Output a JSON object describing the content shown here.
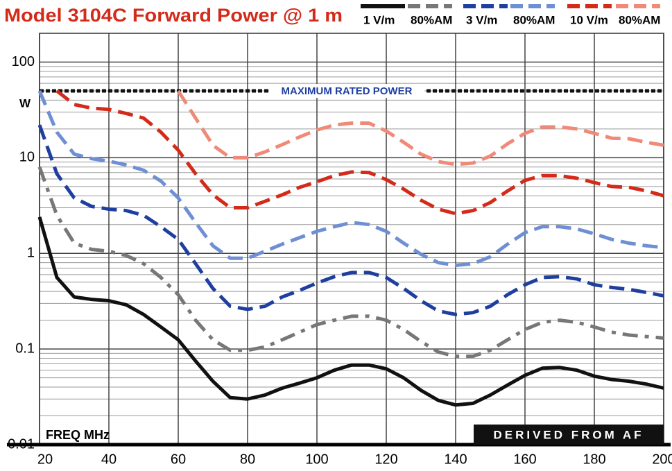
{
  "chart_data": {
    "type": "line",
    "title": "Model 3104C Forward Power @ 1 m",
    "ylabel": "W",
    "xlabel": "FREQ MHz",
    "annotation": "DERIVED FROM AF",
    "reference_line": {
      "value": 50,
      "label": "MAXIMUM RATED POWER",
      "color": "#111111"
    },
    "x": [
      20,
      25,
      30,
      35,
      40,
      45,
      50,
      55,
      60,
      65,
      70,
      75,
      80,
      85,
      90,
      95,
      100,
      105,
      110,
      115,
      120,
      125,
      130,
      135,
      140,
      145,
      150,
      155,
      160,
      165,
      170,
      175,
      180,
      185,
      190,
      195,
      200
    ],
    "xlim": [
      20,
      200
    ],
    "xticks": [
      20,
      40,
      60,
      80,
      100,
      120,
      140,
      160,
      180,
      200
    ],
    "ylim": [
      0.01,
      200
    ],
    "yticks": [
      0.01,
      0.1,
      1,
      10,
      100
    ],
    "log_y": true,
    "grid": true,
    "minor_grid": true,
    "legend": "top-right",
    "series": [
      {
        "name": "1 V/m",
        "color": "#111111",
        "style": "solid",
        "values": [
          2.4,
          0.56,
          0.35,
          0.33,
          0.32,
          0.29,
          0.23,
          0.17,
          0.125,
          0.075,
          0.046,
          0.031,
          0.03,
          0.033,
          0.039,
          0.044,
          0.05,
          0.06,
          0.068,
          0.068,
          0.062,
          0.05,
          0.037,
          0.029,
          0.026,
          0.027,
          0.033,
          0.042,
          0.053,
          0.063,
          0.064,
          0.06,
          0.052,
          0.048,
          0.046,
          0.043,
          0.039
        ]
      },
      {
        "name": "80%AM",
        "color": "#777777",
        "style": "dashdot",
        "values": [
          8,
          2.5,
          1.28,
          1.1,
          1.05,
          0.95,
          0.78,
          0.56,
          0.37,
          0.2,
          0.125,
          0.097,
          0.097,
          0.105,
          0.125,
          0.15,
          0.18,
          0.2,
          0.22,
          0.22,
          0.2,
          0.16,
          0.12,
          0.093,
          0.084,
          0.084,
          0.097,
          0.125,
          0.16,
          0.19,
          0.2,
          0.19,
          0.17,
          0.15,
          0.14,
          0.135,
          0.13
        ]
      },
      {
        "name": "3 V/m",
        "color": "#1f3fa0",
        "style": "dashed",
        "values": [
          22,
          6.8,
          3.8,
          3.1,
          2.9,
          2.8,
          2.5,
          1.9,
          1.4,
          0.78,
          0.43,
          0.28,
          0.26,
          0.28,
          0.35,
          0.41,
          0.49,
          0.57,
          0.63,
          0.63,
          0.56,
          0.43,
          0.32,
          0.25,
          0.23,
          0.24,
          0.28,
          0.37,
          0.47,
          0.56,
          0.57,
          0.54,
          0.47,
          0.44,
          0.42,
          0.39,
          0.36
        ]
      },
      {
        "name": "80%AM",
        "color": "#6f8fd4",
        "style": "dashed",
        "values": [
          50,
          18.5,
          10.9,
          9.8,
          9.2,
          8.4,
          7.4,
          5.7,
          3.8,
          2.1,
          1.2,
          0.89,
          0.89,
          1.05,
          1.25,
          1.46,
          1.7,
          1.9,
          2.1,
          2.0,
          1.7,
          1.28,
          0.98,
          0.8,
          0.75,
          0.78,
          0.92,
          1.25,
          1.65,
          1.9,
          1.9,
          1.8,
          1.6,
          1.4,
          1.28,
          1.2,
          1.15
        ]
      },
      {
        "name": "10 V/m",
        "color": "#d42a1a",
        "style": "dashed",
        "values": [
          null,
          50,
          36,
          33,
          32,
          29,
          26,
          18.5,
          12,
          6.8,
          4.1,
          3.0,
          3.0,
          3.5,
          4.1,
          4.9,
          5.6,
          6.5,
          7.1,
          7.0,
          5.9,
          4.7,
          3.6,
          2.9,
          2.6,
          2.8,
          3.4,
          4.5,
          5.8,
          6.5,
          6.5,
          6.1,
          5.5,
          5.0,
          4.9,
          4.5,
          4.0
        ]
      },
      {
        "name": "80%AM",
        "color": "#f08a78",
        "style": "dashed",
        "values": [
          null,
          null,
          null,
          null,
          null,
          null,
          null,
          null,
          50,
          26,
          13.5,
          10,
          10,
          11.5,
          13.7,
          16.5,
          19.5,
          22,
          23,
          23,
          19,
          14.5,
          10.9,
          9.1,
          8.5,
          8.8,
          10.4,
          14,
          18,
          21,
          21,
          20,
          18,
          16,
          15.8,
          14.5,
          13.5
        ]
      }
    ]
  }
}
